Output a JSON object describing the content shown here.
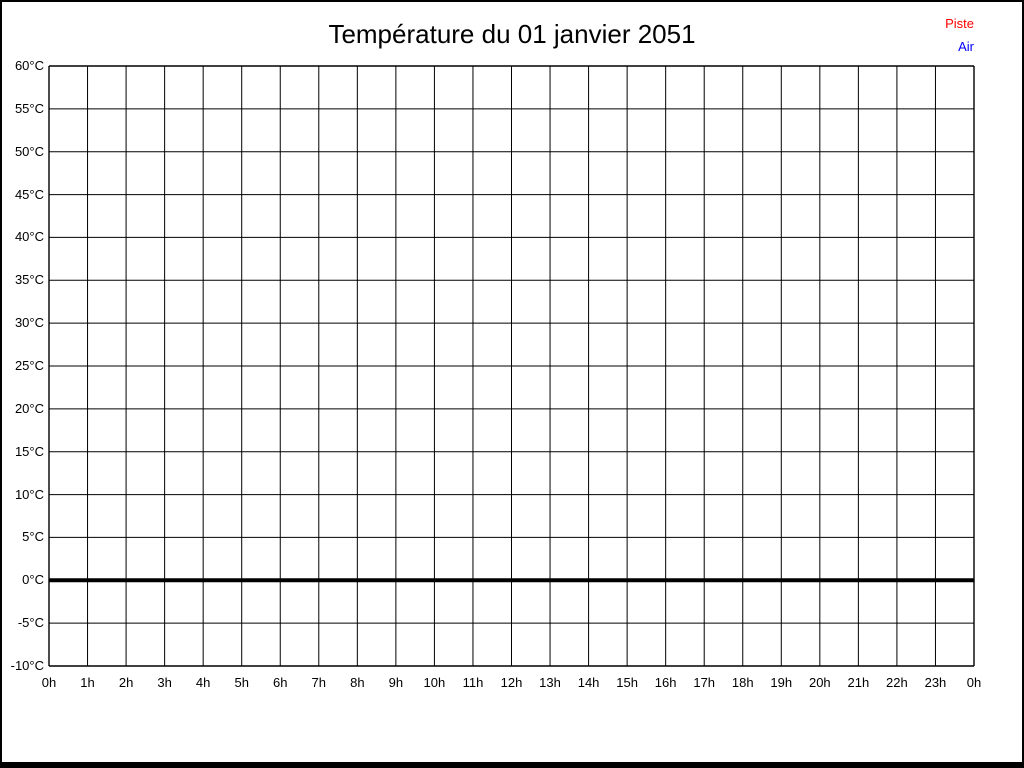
{
  "window": {
    "background": "#ffffff",
    "frame_color": "#000000"
  },
  "legend": {
    "entries": [
      {
        "label": "Piste",
        "color": "#ff0000"
      },
      {
        "label": "Air",
        "color": "#0000ff"
      }
    ]
  },
  "chart_data": {
    "type": "line",
    "title": "Température du 01 janvier 2051",
    "xlabel": "",
    "ylabel": "",
    "x_tick_labels": [
      "0h",
      "1h",
      "2h",
      "3h",
      "4h",
      "5h",
      "6h",
      "7h",
      "8h",
      "9h",
      "10h",
      "11h",
      "12h",
      "13h",
      "14h",
      "15h",
      "16h",
      "17h",
      "18h",
      "19h",
      "20h",
      "21h",
      "22h",
      "23h",
      "0h"
    ],
    "y_tick_labels": [
      "60°C",
      "55°C",
      "50°C",
      "45°C",
      "40°C",
      "35°C",
      "30°C",
      "25°C",
      "20°C",
      "15°C",
      "10°C",
      "5°C",
      "0°C",
      "-5°C",
      "-10°C"
    ],
    "ylim": [
      -10,
      60
    ],
    "y_tick_step": 5,
    "grid": true,
    "grid_color": "#000000",
    "zero_line_value": 0,
    "zero_line_color": "#000000",
    "legend_position": "top-right",
    "series": [
      {
        "name": "Piste",
        "color": "#ff0000",
        "values": []
      },
      {
        "name": "Air",
        "color": "#0000ff",
        "values": []
      }
    ]
  }
}
